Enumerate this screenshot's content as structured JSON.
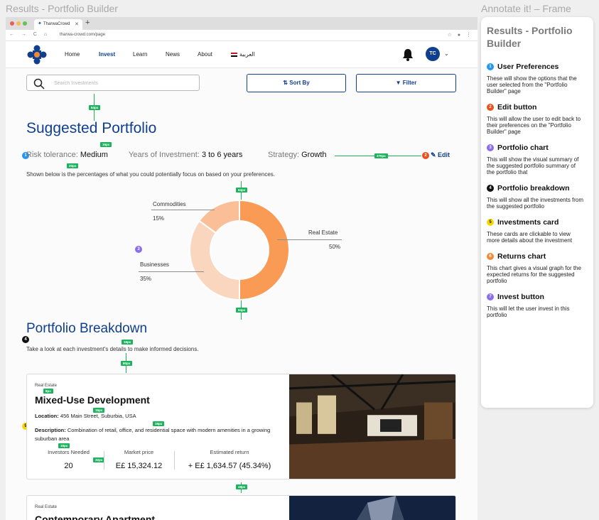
{
  "frames": {
    "left_title": "Results - Portfolio Builder",
    "right_title": "Annotate it! – Frame"
  },
  "browser": {
    "tab_title": "TharwaCrowd",
    "url": "tharwa-crowd.com/page"
  },
  "nav": {
    "items": [
      "Home",
      "Invest",
      "Learn",
      "News",
      "About"
    ],
    "active": "Invest",
    "language": "العربية",
    "avatar_initials": "TC"
  },
  "toolbar": {
    "search_placeholder": "Search Investments",
    "sort_label": "Sort By",
    "filter_label": "Filter"
  },
  "suggested": {
    "title": "Suggested Portfolio",
    "risk_label": "Risk tolerance:",
    "risk_value": "Medium",
    "years_label": "Years of Investment:",
    "years_value": "3 to 6 years",
    "strategy_label": "Strategy:",
    "strategy_value": "Growth",
    "edit_label": "Edit",
    "subtitle": "Shown below is the percentages of what you could potentially focus on based on your preferences."
  },
  "chart_data": {
    "type": "pie",
    "donut": true,
    "labels": [
      "Real Estate",
      "Businesses",
      "Commodities"
    ],
    "values": [
      50,
      35,
      15
    ],
    "value_labels": [
      "50%",
      "35%",
      "15%"
    ],
    "colors": [
      "#f99a55",
      "#fbd6bf",
      "#fbbf98"
    ]
  },
  "breakdown": {
    "title": "Portfolio Breakdown",
    "subtitle": "Take a look at each investment's details to make informed decisions."
  },
  "cards": [
    {
      "category": "Real Estate",
      "title": "Mixed-Use Development",
      "location_label": "Location:",
      "location": "456 Main Street, Suburbia, USA",
      "description_label": "Description:",
      "description": "Combination of retail, office, and residential space with modern amenities in a growing suburban area",
      "investors_label": "Investors Needed",
      "investors": "20",
      "price_label": "Market price",
      "price": "E£ 15,324.12",
      "return_label": "Estimated return",
      "return": "+ E£ 1,634.57 (45.34%)"
    },
    {
      "category": "Real Estate",
      "title": "Contemporary Apartment"
    }
  ],
  "spacing_badges": [
    "64px",
    "16px",
    "20px",
    "270px",
    "64px",
    "64px",
    "16px",
    "80px",
    "8px",
    "16px",
    "16px",
    "16px",
    "32px",
    "48px"
  ],
  "annotations": {
    "title": "Results - Portfolio Builder",
    "items": [
      {
        "num": "1",
        "color": "#2196f3",
        "title": "User Preferences",
        "desc": "These will show the options that the user selected from the \"Portfolio Builder\" page"
      },
      {
        "num": "2",
        "color": "#e8501e",
        "title": "Edit button",
        "desc": "This will allow the user to edit back to their preferences on the \"Portfolio Builder\" page"
      },
      {
        "num": "3",
        "color": "#8b6cf0",
        "title": "Portfolio chart",
        "desc": "This will show the visual summary of the suggested portfolio summary of the portfolio  that"
      },
      {
        "num": "4",
        "color": "#111111",
        "title": "Portfolio breakdown",
        "desc": "This will show all the investments from the suggested portfolio"
      },
      {
        "num": "5",
        "color": "#f5d800",
        "title": "Investments card",
        "desc": "These cards are clickable to view more details about the investment"
      },
      {
        "num": "6",
        "color": "#f08a3a",
        "title": "Returns chart",
        "desc": "This chart gives a visual graph for the expected returns for the suggested portfolio"
      },
      {
        "num": "7",
        "color": "#8b6cf0",
        "title": "Invest button",
        "desc": "This will let the user invest in this portfolio"
      }
    ]
  }
}
